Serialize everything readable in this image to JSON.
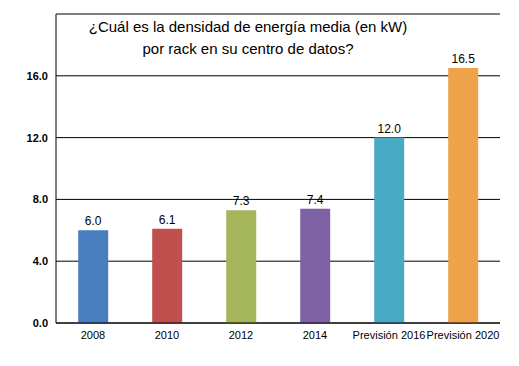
{
  "chart_data": {
    "type": "bar",
    "title": "¿Cuál es la densidad de energía media (en kW)\npor rack en su centro de datos?",
    "categories": [
      "2008",
      "2010",
      "2012",
      "2014",
      "Previsión 2016",
      "Previsión 2020"
    ],
    "values": [
      6.0,
      6.1,
      7.3,
      7.4,
      12.0,
      16.5
    ],
    "value_labels": [
      "6.0",
      "6.1",
      "7.3",
      "7.4",
      "12.0",
      "16.5"
    ],
    "colors": [
      "#4a7cc0",
      "#c0504d",
      "#a5b55a",
      "#7f62a5",
      "#4aa9c5",
      "#eea24a"
    ],
    "ylim": [
      0,
      20
    ],
    "yticks": [
      {
        "value": 0,
        "label": "0.0"
      },
      {
        "value": 4,
        "label": "4.0"
      },
      {
        "value": 8,
        "label": "8.0"
      },
      {
        "value": 12,
        "label": "12.0"
      },
      {
        "value": 16,
        "label": "16.0"
      }
    ],
    "grid": true,
    "data_labels": true
  }
}
